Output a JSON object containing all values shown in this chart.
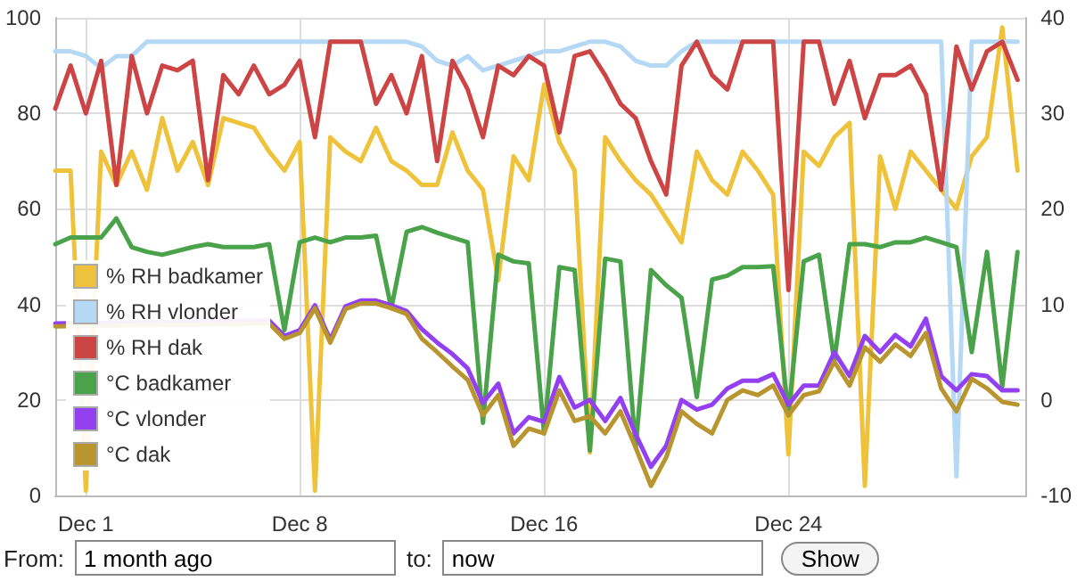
{
  "chart_data": {
    "type": "line",
    "x": [
      "--11-30T00:00",
      "--11-30T12:00",
      "--12-01T00:00",
      "--12-01T12:00",
      "--12-02T00:00",
      "--12-02T12:00",
      "--12-03T00:00",
      "--12-03T12:00",
      "--12-04T00:00",
      "--12-04T12:00",
      "--12-05T00:00",
      "--12-05T12:00",
      "--12-06T00:00",
      "--12-06T12:00",
      "--12-07T00:00",
      "--12-07T12:00",
      "--12-08T00:00",
      "--12-08T12:00",
      "--12-09T00:00",
      "--12-09T12:00",
      "--12-10T00:00",
      "--12-10T12:00",
      "--12-11T00:00",
      "--12-11T12:00",
      "--12-12T00:00",
      "--12-12T12:00",
      "--12-13T00:00",
      "--12-13T12:00",
      "--12-14T00:00",
      "--12-14T12:00",
      "--12-15T00:00",
      "--12-15T12:00",
      "--12-16T00:00",
      "--12-16T12:00",
      "--12-17T00:00",
      "--12-17T12:00",
      "--12-18T00:00",
      "--12-18T12:00",
      "--12-19T00:00",
      "--12-19T12:00",
      "--12-20T00:00",
      "--12-20T12:00",
      "--12-21T00:00",
      "--12-21T12:00",
      "--12-22T00:00",
      "--12-22T12:00",
      "--12-23T00:00",
      "--12-23T12:00",
      "--12-24T00:00",
      "--12-24T12:00",
      "--12-25T00:00",
      "--12-25T12:00",
      "--12-26T00:00",
      "--12-26T12:00",
      "--12-27T00:00",
      "--12-27T12:00",
      "--12-28T00:00",
      "--12-28T12:00",
      "--12-29T00:00",
      "--12-29T12:00",
      "--12-30T00:00",
      "--12-30T12:00",
      "--12-31T00:00",
      "--12-31T12:00"
    ],
    "xlim": [
      "--11-30T00:00",
      "--12-31T19:00"
    ],
    "xticks": [
      {
        "value": "--12-01",
        "label": "Dec 1"
      },
      {
        "value": "--12-08",
        "label": "Dec 8"
      },
      {
        "value": "--12-16",
        "label": "Dec 16"
      },
      {
        "value": "--12-24",
        "label": "Dec 24"
      }
    ],
    "ylim": [
      0,
      100
    ],
    "yticks": [
      0,
      20,
      40,
      60,
      80,
      100
    ],
    "y2lim": [
      -10,
      40
    ],
    "y2ticks": [
      -10,
      0,
      10,
      20,
      30,
      40
    ],
    "grid": true,
    "legend": "left",
    "marker": "none",
    "line_style": "solid",
    "series": [
      {
        "name": "% RH badkamer",
        "color": "#efc23c",
        "values": [
          68,
          68,
          1,
          72,
          65,
          72,
          64,
          79,
          68,
          74,
          65,
          79,
          null,
          77,
          72,
          68,
          74,
          1,
          75,
          72,
          70,
          77,
          70,
          68,
          65,
          65,
          76,
          68,
          64,
          45,
          71,
          66,
          86,
          74,
          68,
          9,
          75,
          70,
          66,
          63,
          58,
          53,
          72,
          66,
          63,
          72,
          68,
          63,
          8.6,
          72,
          69,
          75,
          78,
          2,
          71,
          60,
          72,
          68,
          64,
          60,
          71,
          75,
          98,
          68
        ]
      },
      {
        "name": "% RH vlonder",
        "color": "#b5d8f5",
        "values": [
          93,
          93,
          92,
          89.5,
          92,
          92,
          95,
          95,
          95,
          95,
          95,
          95,
          95,
          95,
          95,
          95,
          95,
          95,
          95,
          95,
          95,
          95,
          95,
          95,
          94,
          91,
          90,
          92,
          89,
          90,
          91,
          92,
          93,
          93,
          94,
          95,
          95,
          94,
          91,
          90,
          90,
          93,
          95,
          95,
          95,
          95,
          95,
          95,
          95,
          95,
          95,
          95,
          95,
          95,
          95,
          95,
          95,
          95,
          95,
          4,
          95,
          95,
          95,
          95
        ]
      },
      {
        "name": "% RH dak",
        "color": "#cc4444",
        "values": [
          81,
          90,
          80,
          91,
          65,
          92,
          80,
          90,
          89,
          91,
          66,
          88,
          84,
          90,
          84,
          86,
          91,
          75,
          95,
          95,
          95,
          82,
          88,
          80,
          92,
          70,
          91,
          85,
          75,
          90,
          88,
          92,
          90,
          76,
          92,
          93,
          88,
          82,
          79,
          70,
          63,
          90,
          95,
          88,
          85,
          95,
          95,
          95,
          43,
          95,
          95,
          82,
          91,
          79,
          88,
          88,
          90,
          84,
          64,
          94,
          85,
          93,
          95,
          87
        ]
      },
      {
        "name": "°C badkamer",
        "color": "#4aa24a",
        "axis": "y2",
        "values": [
          16.3,
          17,
          null,
          17,
          19,
          16,
          15.5,
          15.2,
          null,
          16,
          16.3,
          16,
          null,
          16,
          16.3,
          7.3,
          16.5,
          17,
          16.5,
          17,
          17,
          17.2,
          9.6,
          17.6,
          18.1,
          17.5,
          17,
          16.5,
          -2.4,
          15.2,
          14.5,
          14.3,
          -3.5,
          13.9,
          13.6,
          -5.3,
          14.8,
          14.5,
          -5,
          13.6,
          12,
          10.7,
          0.3,
          12.6,
          13,
          13.9,
          13.9,
          14,
          -1.6,
          14.5,
          15.2,
          4,
          16.3,
          16.3,
          16,
          16.5,
          16.5,
          17,
          16.5,
          16,
          5,
          15.5,
          1.4,
          15.5
        ]
      },
      {
        "name": "°C vlonder",
        "color": "#9340f0",
        "axis": "y2",
        "values": [
          8,
          null,
          null,
          null,
          null,
          null,
          null,
          null,
          null,
          null,
          null,
          null,
          null,
          null,
          8.3,
          6.7,
          7.3,
          9.9,
          6.3,
          9.8,
          10.4,
          10.4,
          9.9,
          9.3,
          7.4,
          6,
          4.8,
          3.3,
          -0.3,
          1.7,
          -3.5,
          -1.8,
          -2.3,
          2.4,
          -0.8,
          0,
          -2.2,
          0.2,
          -3.6,
          -7,
          -4.8,
          0,
          -1,
          -0.5,
          1.2,
          2,
          2,
          2.7,
          -0.5,
          1.5,
          1.5,
          5,
          2.5,
          6.7,
          5,
          6.8,
          5.6,
          8.5,
          2.5,
          1,
          2.7,
          2.5,
          1,
          1
        ]
      },
      {
        "name": "°C dak",
        "color": "#b8952e",
        "axis": "y2",
        "values": [
          7.7,
          null,
          null,
          null,
          null,
          null,
          null,
          null,
          null,
          null,
          null,
          null,
          null,
          null,
          8,
          6.4,
          7,
          9.6,
          6,
          9.5,
          10.1,
          10.1,
          9.6,
          9,
          6.4,
          5,
          3.5,
          2.1,
          -1.6,
          0.5,
          -4.8,
          -3,
          -3.5,
          1,
          -2.2,
          -1.7,
          -3.5,
          -1.2,
          -5,
          -9,
          -6,
          -1.2,
          -2.5,
          -3.5,
          0,
          1,
          0.5,
          1.5,
          -1.6,
          0.5,
          0.9,
          4,
          1.5,
          5.5,
          4,
          5.8,
          4.6,
          7,
          1.2,
          -1.2,
          2.2,
          1.2,
          -0.2,
          -0.5
        ]
      }
    ],
    "annotations": [
      "From:",
      "1 month ago",
      "to:",
      "now",
      "Show"
    ]
  }
}
